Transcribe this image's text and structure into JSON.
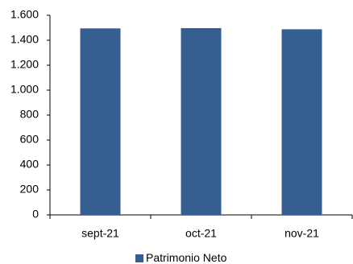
{
  "chart_data": {
    "type": "bar",
    "categories": [
      "sept-21",
      "oct-21",
      "nov-21"
    ],
    "series": [
      {
        "name": "Patrimonio Neto",
        "color": "#365f91",
        "values": [
          1495,
          1497,
          1488
        ]
      }
    ],
    "ylim": [
      0,
      1600
    ],
    "yticks": [
      0,
      200,
      400,
      600,
      800,
      {
        "value": 1000,
        "label": "1.000"
      },
      {
        "value": 1200,
        "label": "1.200"
      },
      {
        "value": 1400,
        "label": "1.400"
      },
      {
        "value": 1600,
        "label": "1.600"
      }
    ],
    "grid": false,
    "legend": "bottom"
  }
}
